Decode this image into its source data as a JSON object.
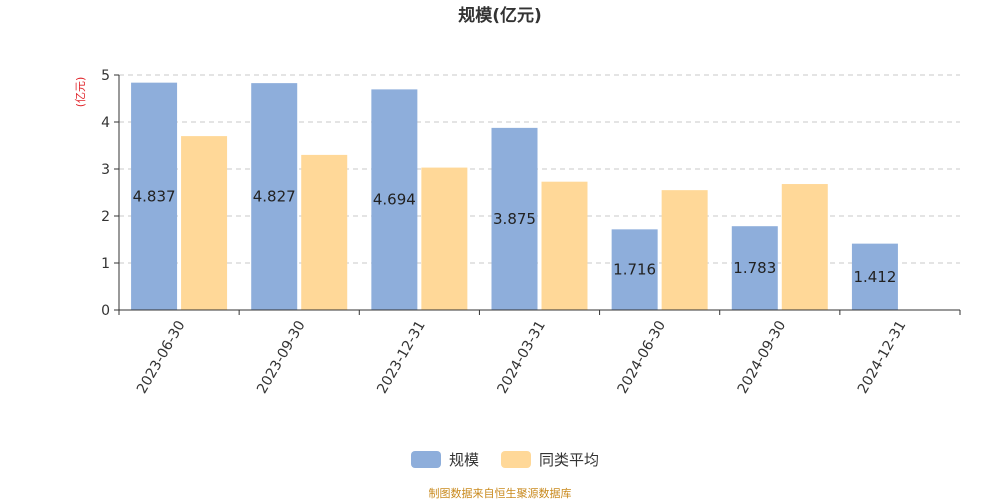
{
  "chart_data": {
    "type": "bar",
    "title": "规模(亿元)",
    "ylabel": "(亿元)",
    "xlabel": "",
    "ylim": [
      0,
      5
    ],
    "yticks": [
      0,
      1,
      2,
      3,
      4,
      5
    ],
    "grid": true,
    "categories": [
      "2023-06-30",
      "2023-09-30",
      "2023-12-31",
      "2024-03-31",
      "2024-06-30",
      "2024-09-30",
      "2024-12-31"
    ],
    "series": [
      {
        "name": "规模",
        "color": "#8eaedb",
        "values": [
          4.837,
          4.827,
          4.694,
          3.875,
          1.716,
          1.783,
          1.412
        ],
        "labels": [
          "4.837",
          "4.827",
          "4.694",
          "3.875",
          "1.716",
          "1.783",
          "1.412"
        ]
      },
      {
        "name": "同类平均",
        "color": "#ffd898",
        "values": [
          3.7,
          3.3,
          3.03,
          2.73,
          2.55,
          2.68,
          null
        ]
      }
    ],
    "legend_position": "bottom-center"
  },
  "source": "制图数据来自恒生聚源数据库"
}
